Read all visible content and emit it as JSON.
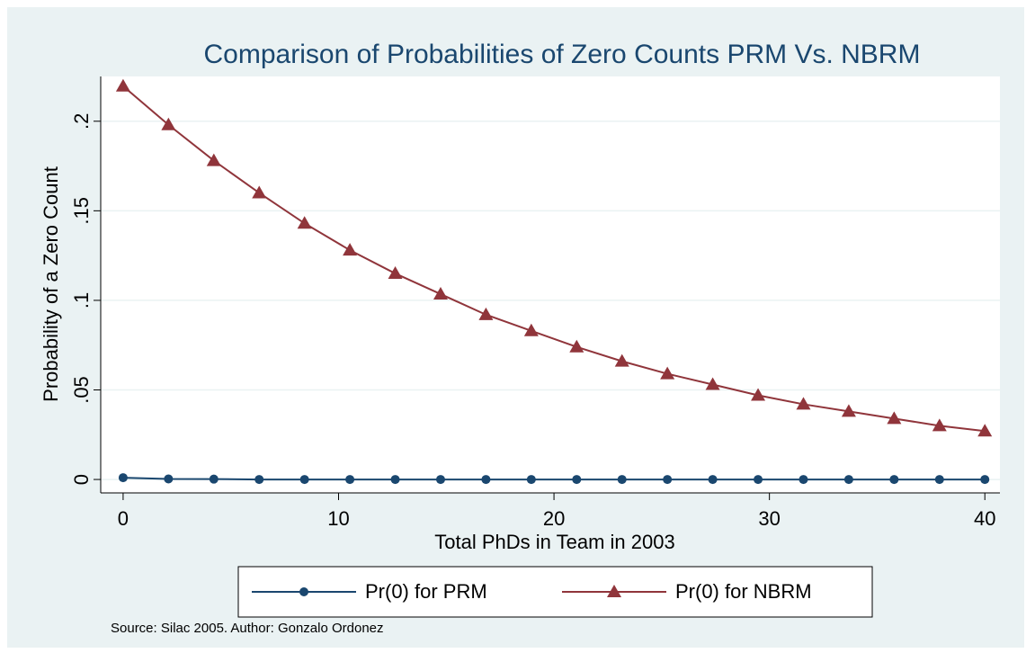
{
  "chart_data": {
    "type": "line",
    "title": "Comparison of Probabilities of Zero Counts PRM Vs. NBRM",
    "x_label": "Total PhDs in Team in 2003",
    "y_label": "Probability of a Zero Count",
    "note": "Source: Silac 2005. Author: Gonzalo Ordonez",
    "x": [
      0,
      2.105,
      4.211,
      6.316,
      8.421,
      10.526,
      12.632,
      14.737,
      16.842,
      18.947,
      21.053,
      23.158,
      25.263,
      27.368,
      29.474,
      31.579,
      33.684,
      35.789,
      37.895,
      40
    ],
    "series": [
      {
        "name": "Pr(0) for PRM",
        "color": "#1a476f",
        "marker": "circle",
        "values": [
          0.001,
          0.0003,
          0.0002,
          0,
          0,
          0,
          0,
          0,
          0,
          0,
          0,
          0,
          0,
          0,
          0,
          0,
          0,
          0,
          0,
          0
        ]
      },
      {
        "name": "Pr(0) for NBRM",
        "color": "#90353b",
        "marker": "triangle",
        "values": [
          0.2196,
          0.198,
          0.178,
          0.16,
          0.143,
          0.128,
          0.115,
          0.1035,
          0.092,
          0.083,
          0.074,
          0.066,
          0.059,
          0.053,
          0.047,
          0.042,
          0.038,
          0.034,
          0.03,
          0.027
        ]
      }
    ],
    "xlim": [
      -1.04,
      40.7
    ],
    "ylim": [
      -0.0075,
      0.225
    ],
    "xticks": [
      0,
      10,
      20,
      30,
      40
    ],
    "yticks": [
      0,
      {
        "value": 0.05,
        "label": ".05"
      },
      {
        "value": 0.1,
        "label": ".1"
      },
      {
        "value": 0.15,
        "label": ".15"
      },
      {
        "value": 0.2,
        "label": ".2"
      }
    ],
    "grid": true
  }
}
